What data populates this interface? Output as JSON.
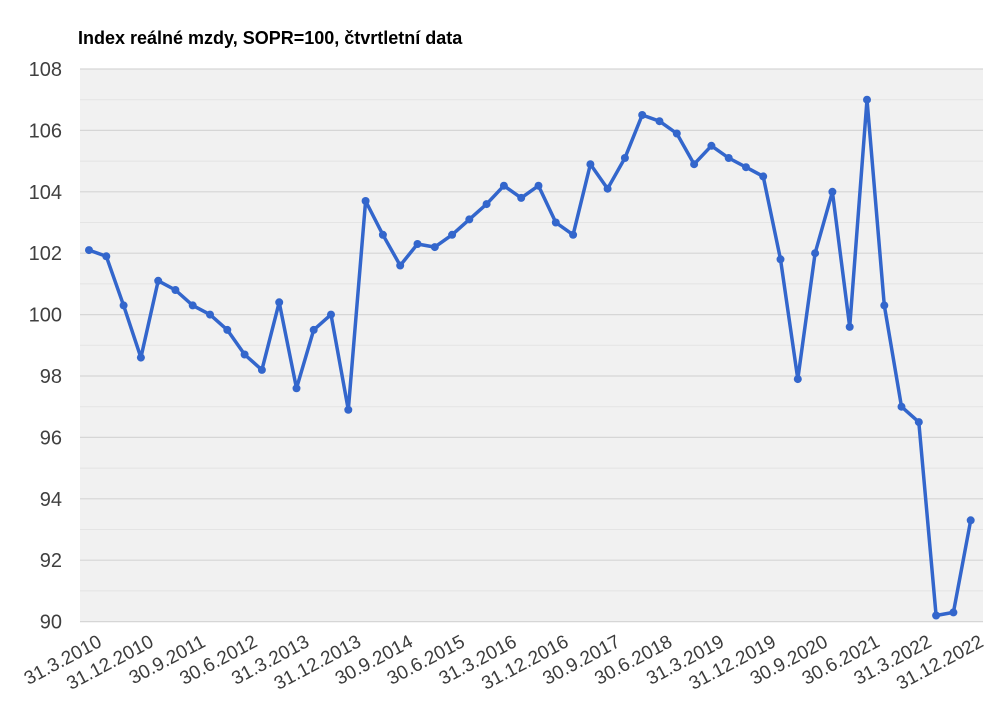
{
  "page": {
    "background": "#ffffff"
  },
  "chart_data": {
    "type": "line",
    "title": "Index reálné mzdy, SOPR=100, čtvrtletní data",
    "xlabel": "",
    "ylabel": "",
    "ylim": [
      90,
      108
    ],
    "y_ticks": [
      90,
      92,
      94,
      96,
      98,
      100,
      102,
      104,
      106,
      108
    ],
    "minor_y_ticks": [
      91,
      93,
      95,
      97,
      99,
      101,
      103,
      105,
      107
    ],
    "grid": "horizontal, major and minor lines, no vertical grid",
    "legend": "none",
    "x_tick_every": 3,
    "x_tick_labels": [
      "31.3.2010",
      "31.12.2010",
      "30.9.2011",
      "30.6.2012",
      "31.3.2013",
      "31.12.2013",
      "30.9.2014",
      "30.6.2015",
      "31.3.2016",
      "31.12.2016",
      "30.9.2017",
      "30.6.2018",
      "31.3.2019",
      "31.12.2019",
      "30.9.2020",
      "30.6.2021",
      "31.3.2022",
      "31.12.2022"
    ],
    "categories": [
      "31.3.2010",
      "30.6.2010",
      "30.9.2010",
      "31.12.2010",
      "31.3.2011",
      "30.6.2011",
      "30.9.2011",
      "31.12.2011",
      "31.3.2012",
      "30.6.2012",
      "30.9.2012",
      "31.12.2012",
      "31.3.2013",
      "30.6.2013",
      "30.9.2013",
      "31.12.2013",
      "31.3.2014",
      "30.6.2014",
      "30.9.2014",
      "31.12.2014",
      "31.3.2015",
      "30.6.2015",
      "30.9.2015",
      "31.12.2015",
      "31.3.2016",
      "30.6.2016",
      "30.9.2016",
      "31.12.2016",
      "31.3.2017",
      "30.6.2017",
      "30.9.2017",
      "31.12.2017",
      "31.3.2018",
      "30.6.2018",
      "30.9.2018",
      "31.12.2018",
      "31.3.2019",
      "30.6.2019",
      "30.9.2019",
      "31.12.2019",
      "31.3.2020",
      "30.6.2020",
      "30.9.2020",
      "31.12.2020",
      "31.3.2021",
      "30.6.2021",
      "30.9.2021",
      "31.12.2021",
      "31.3.2022",
      "30.6.2022",
      "30.9.2022",
      "31.12.2022"
    ],
    "values": [
      102.1,
      101.9,
      100.3,
      98.6,
      101.1,
      100.8,
      100.3,
      100.0,
      99.5,
      98.7,
      98.2,
      100.4,
      97.6,
      99.5,
      100.0,
      96.9,
      103.7,
      102.6,
      101.6,
      102.3,
      102.2,
      102.6,
      103.1,
      103.6,
      104.2,
      103.8,
      104.2,
      103.0,
      102.6,
      104.9,
      104.1,
      105.1,
      106.5,
      106.3,
      105.9,
      104.9,
      105.5,
      105.1,
      104.8,
      104.5,
      101.8,
      97.9,
      102.0,
      104.0,
      99.6,
      107.0,
      100.3,
      97.0,
      96.5,
      90.2,
      90.3,
      93.3
    ],
    "colors": {
      "line": "#3366cc",
      "point": "#3366cc",
      "plot_background": "#f1f1f1",
      "major_grid": "#d6d6d6",
      "minor_grid": "#e4e4e4",
      "y_label": "#404040",
      "x_label": "#3c3c3c",
      "title": "#000000"
    }
  }
}
